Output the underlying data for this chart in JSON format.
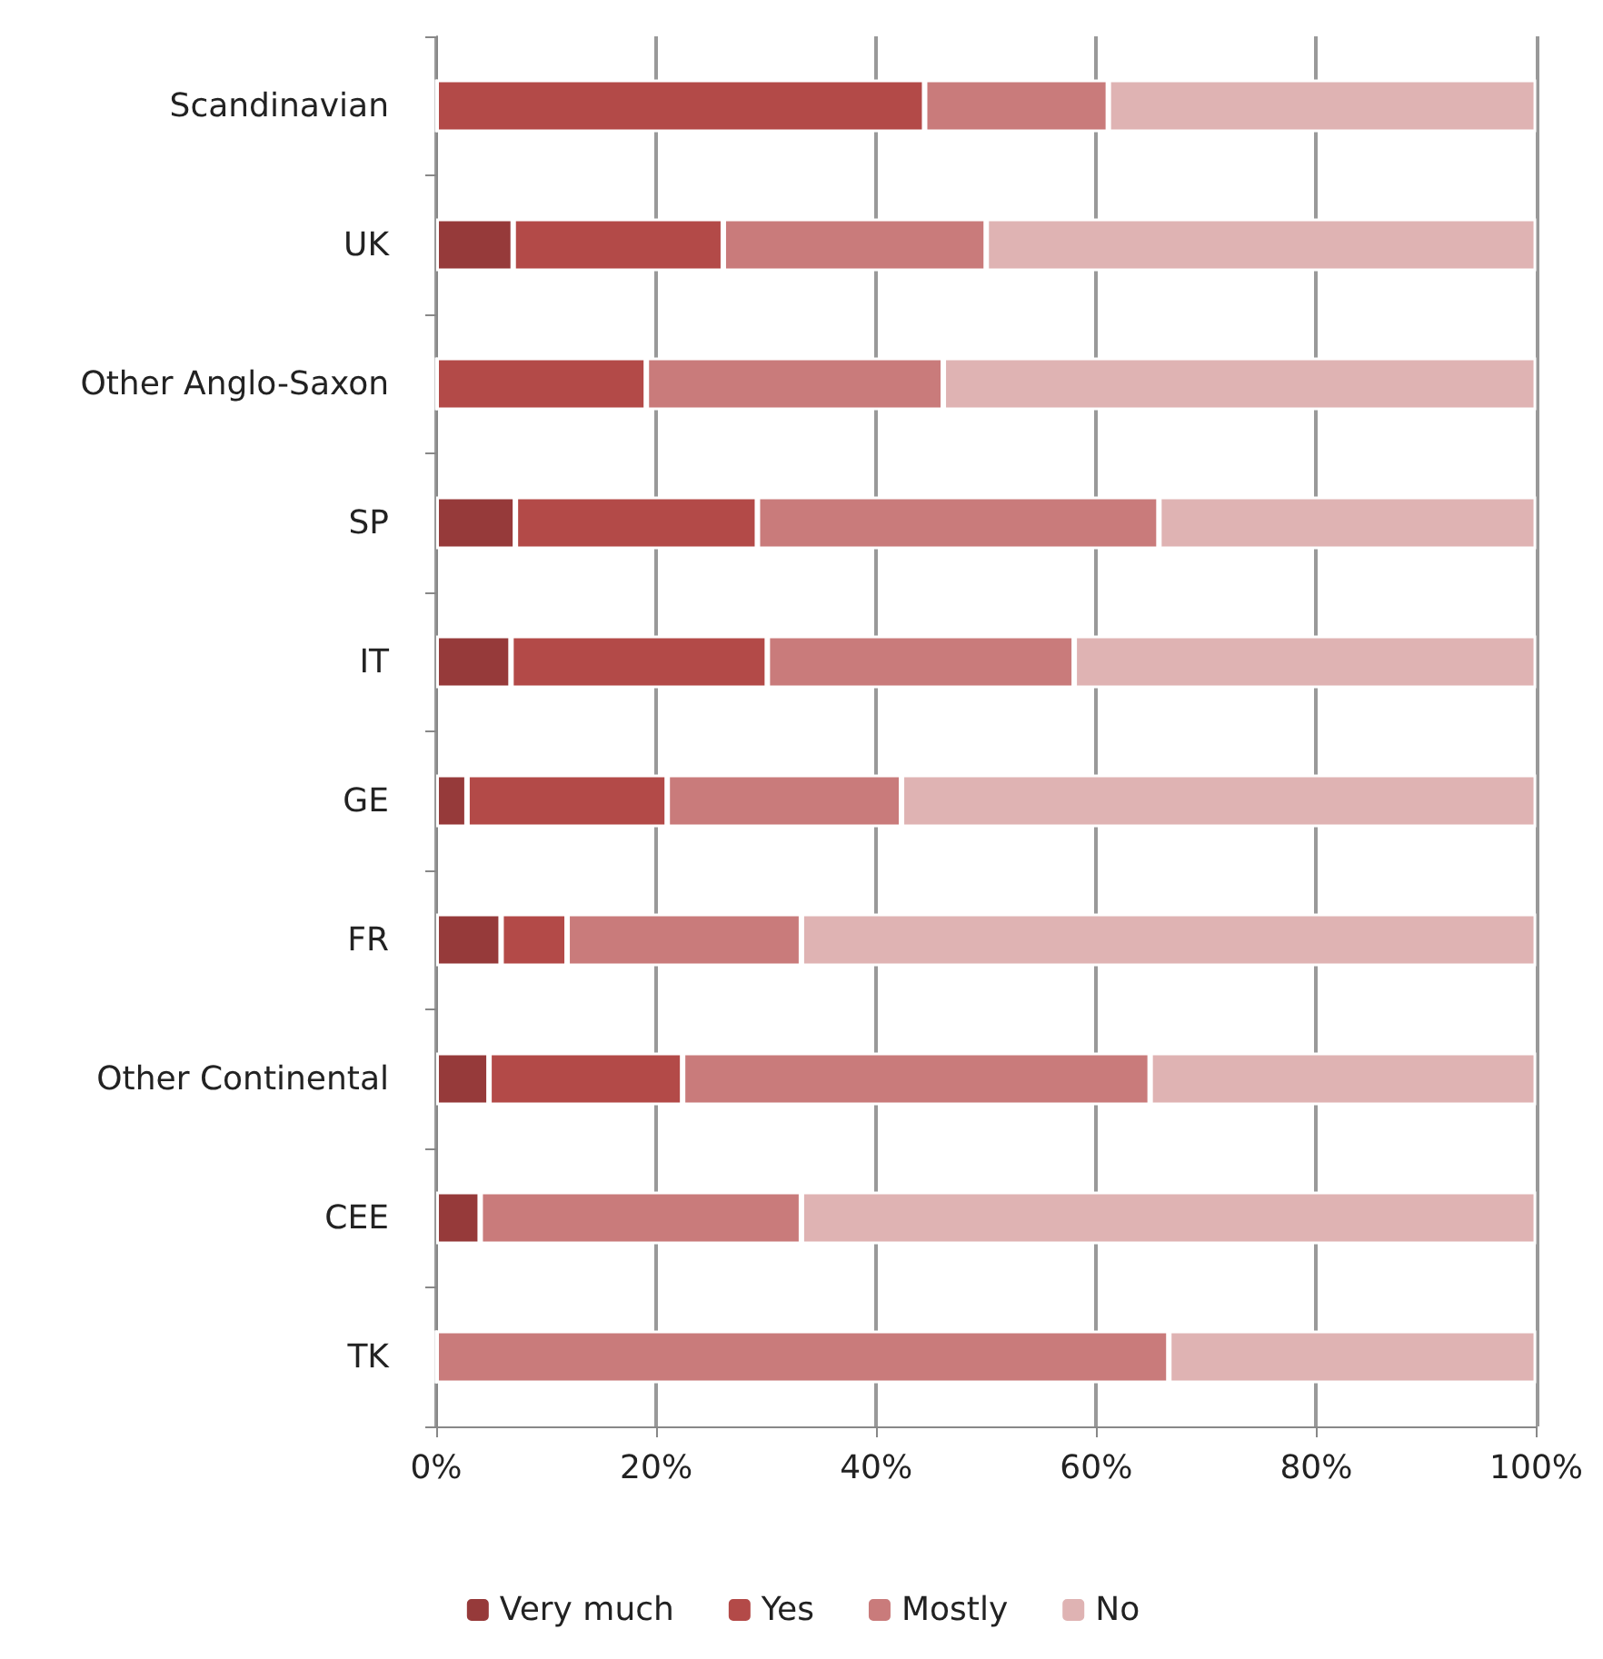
{
  "chart_data": {
    "type": "bar",
    "orientation": "horizontal",
    "stacked": true,
    "categories": [
      "Scandinavian",
      "UK",
      "Other Anglo-Saxon",
      "SP",
      "IT",
      "GE",
      "FR",
      "Other Continental",
      "CEE",
      "TK"
    ],
    "series": [
      {
        "name": "Very much",
        "color": "#963a3a",
        "values": [
          0,
          7.0,
          0,
          7.2,
          6.8,
          2.8,
          5.9,
          4.8,
          4.0,
          0
        ]
      },
      {
        "name": "Yes",
        "color": "#b34a48",
        "values": [
          44.4,
          19.1,
          19.1,
          22.0,
          23.3,
          18.2,
          6.0,
          17.6,
          0,
          0
        ]
      },
      {
        "name": "Mostly",
        "color": "#c97b7b",
        "values": [
          16.7,
          23.9,
          27.0,
          36.5,
          27.9,
          21.3,
          21.3,
          42.5,
          29.2,
          66.6
        ]
      },
      {
        "name": "No",
        "color": "#dfb3b3",
        "values": [
          38.9,
          50.0,
          53.9,
          34.3,
          42.0,
          57.7,
          66.8,
          35.1,
          66.8,
          33.4
        ]
      }
    ],
    "xlim": [
      0,
      100
    ],
    "xticks": [
      {
        "value": 0,
        "label": "0%"
      },
      {
        "value": 20,
        "label": "20%"
      },
      {
        "value": 40,
        "label": "40%"
      },
      {
        "value": 60,
        "label": "60%"
      },
      {
        "value": 80,
        "label": "80%"
      },
      {
        "value": 100,
        "label": "100%"
      }
    ],
    "grid": "x",
    "legend": "bottom"
  }
}
